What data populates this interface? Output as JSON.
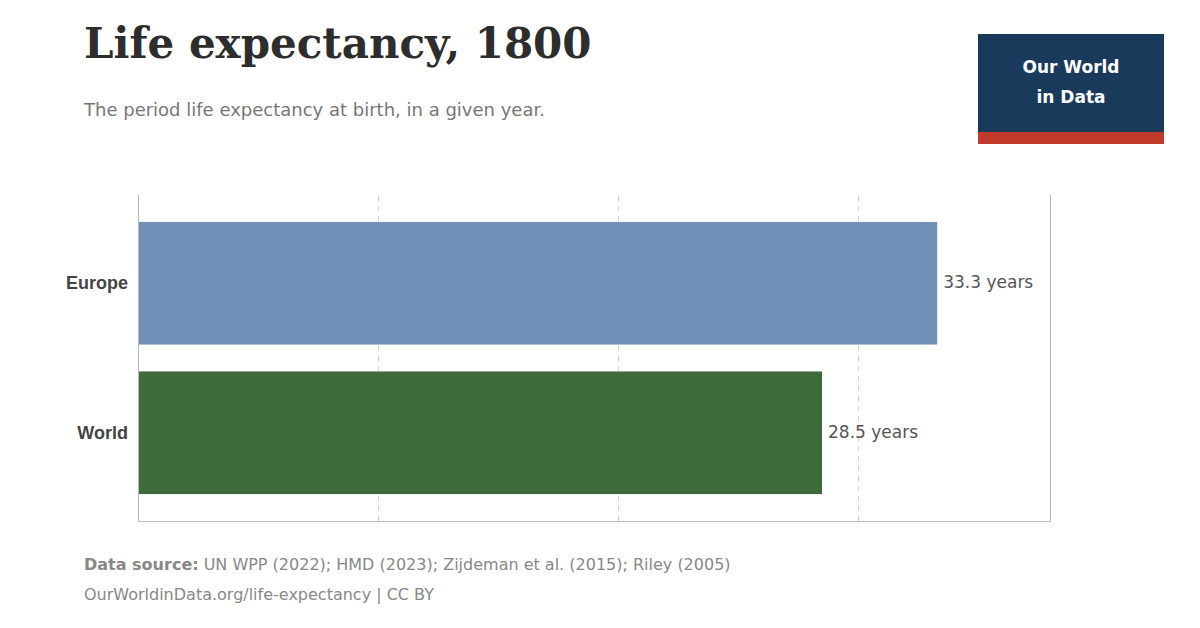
{
  "chart_data": {
    "type": "bar",
    "orientation": "horizontal",
    "title": "Life expectancy, 1800",
    "subtitle": "The period life expectancy at birth, in a given year.",
    "categories": [
      "Europe",
      "World"
    ],
    "values": [
      33.3,
      28.5
    ],
    "value_labels": [
      "33.3 years",
      "28.5 years"
    ],
    "data_labels": true,
    "colors": [
      "#7090b8",
      "#3d6b3a"
    ],
    "xlim": [
      0,
      38
    ],
    "xticks": [
      10,
      20,
      30
    ],
    "grid": true,
    "tick_labels": "y",
    "source_label": "Data source:",
    "source": "UN WPP (2022); HMD (2023); Zijdeman et al. (2015); Riley (2005)",
    "note": "OurWorldinData.org/life-expectancy | CC BY",
    "logo": [
      "Our World",
      "in Data"
    ]
  }
}
